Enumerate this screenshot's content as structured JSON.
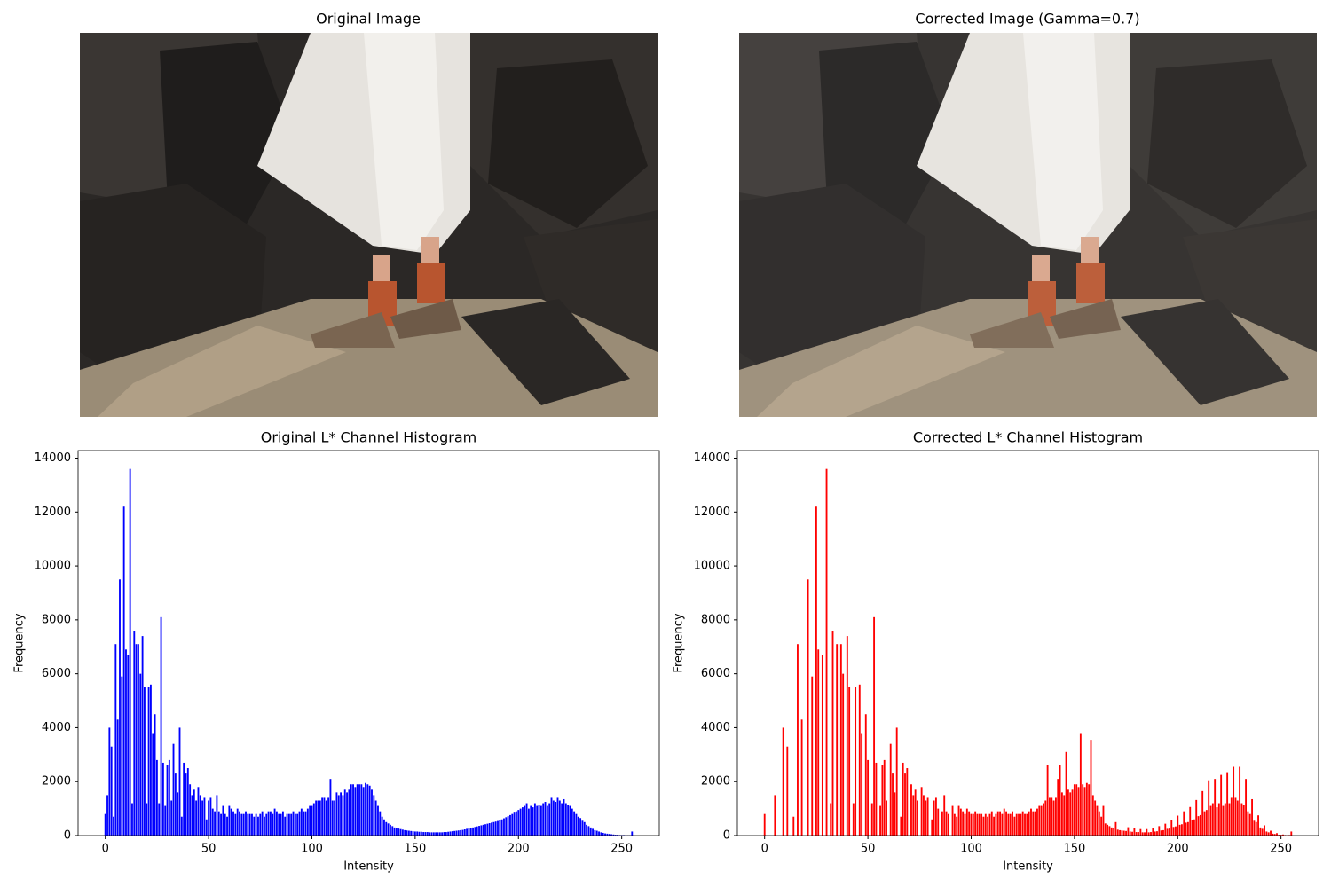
{
  "images": [
    {
      "title": "Original Image"
    },
    {
      "title": "Corrected Image (Gamma=0.7)"
    }
  ],
  "chart_data": [
    {
      "type": "bar",
      "title": "Original L* Channel Histogram",
      "xlabel": "Intensity",
      "ylabel": "Frequency",
      "color": "#0000ff",
      "xlim": [
        -13.19,
        268.19
      ],
      "ylim": [
        0,
        14280
      ],
      "xticks": [
        0,
        50,
        100,
        150,
        200,
        250
      ],
      "yticks": [
        0,
        2000,
        4000,
        6000,
        8000,
        10000,
        12000,
        14000
      ],
      "x": [
        0,
        1,
        2,
        3,
        4,
        5,
        6,
        7,
        8,
        9,
        10,
        11,
        12,
        13,
        14,
        15,
        16,
        17,
        18,
        19,
        20,
        21,
        22,
        23,
        24,
        25,
        26,
        27,
        28,
        29,
        30,
        31,
        32,
        33,
        34,
        35,
        36,
        37,
        38,
        39,
        40,
        41,
        42,
        43,
        44,
        45,
        46,
        47,
        48,
        49,
        50,
        51,
        52,
        53,
        54,
        55,
        56,
        57,
        58,
        59,
        60,
        61,
        62,
        63,
        64,
        65,
        66,
        67,
        68,
        69,
        70,
        71,
        72,
        73,
        74,
        75,
        76,
        77,
        78,
        79,
        80,
        81,
        82,
        83,
        84,
        85,
        86,
        87,
        88,
        89,
        90,
        91,
        92,
        93,
        94,
        95,
        96,
        97,
        98,
        99,
        100,
        101,
        102,
        103,
        104,
        105,
        106,
        107,
        108,
        109,
        110,
        111,
        112,
        113,
        114,
        115,
        116,
        117,
        118,
        119,
        120,
        121,
        122,
        123,
        124,
        125,
        126,
        127,
        128,
        129,
        130,
        131,
        132,
        133,
        134,
        135,
        136,
        137,
        138,
        139,
        140,
        141,
        142,
        143,
        144,
        145,
        146,
        147,
        148,
        149,
        150,
        151,
        152,
        153,
        154,
        155,
        156,
        157,
        158,
        159,
        160,
        161,
        162,
        163,
        164,
        165,
        166,
        167,
        168,
        169,
        170,
        171,
        172,
        173,
        174,
        175,
        176,
        177,
        178,
        179,
        180,
        181,
        182,
        183,
        184,
        185,
        186,
        187,
        188,
        189,
        190,
        191,
        192,
        193,
        194,
        195,
        196,
        197,
        198,
        199,
        200,
        201,
        202,
        203,
        204,
        205,
        206,
        207,
        208,
        209,
        210,
        211,
        212,
        213,
        214,
        215,
        216,
        217,
        218,
        219,
        220,
        221,
        222,
        223,
        224,
        225,
        226,
        227,
        228,
        229,
        230,
        231,
        232,
        233,
        234,
        235,
        236,
        237,
        238,
        239,
        240,
        241,
        242,
        243,
        244,
        245,
        246,
        247,
        248,
        249,
        250,
        251,
        252,
        253,
        254,
        255
      ],
      "values": [
        800,
        1500,
        4000,
        3300,
        700,
        7100,
        4300,
        9500,
        5900,
        12200,
        6900,
        6700,
        13600,
        1200,
        7600,
        7100,
        7100,
        6000,
        7400,
        5500,
        1200,
        5500,
        5600,
        3800,
        4500,
        2800,
        1200,
        8100,
        2700,
        1100,
        2600,
        2800,
        1300,
        3400,
        2300,
        1600,
        4000,
        700,
        2700,
        2300,
        2500,
        1900,
        1500,
        1700,
        1300,
        1800,
        1500,
        1300,
        1400,
        600,
        1300,
        1400,
        1000,
        900,
        1500,
        900,
        800,
        1100,
        800,
        700,
        1100,
        1000,
        900,
        800,
        1000,
        900,
        800,
        800,
        900,
        800,
        800,
        800,
        700,
        800,
        700,
        800,
        900,
        700,
        800,
        900,
        900,
        800,
        1000,
        900,
        800,
        800,
        900,
        700,
        800,
        800,
        800,
        900,
        800,
        800,
        900,
        1000,
        900,
        900,
        1000,
        1100,
        1100,
        1200,
        1300,
        1300,
        1300,
        1400,
        1400,
        1300,
        1400,
        2100,
        1300,
        1300,
        1600,
        1500,
        1600,
        1500,
        1700,
        1600,
        1700,
        1900,
        1900,
        1800,
        1900,
        1900,
        1900,
        1800,
        1950,
        1900,
        1850,
        1700,
        1500,
        1300,
        1100,
        900,
        700,
        600,
        500,
        450,
        400,
        350,
        300,
        280,
        260,
        240,
        220,
        200,
        190,
        180,
        170,
        160,
        150,
        150,
        140,
        140,
        130,
        130,
        130,
        120,
        120,
        120,
        120,
        120,
        120,
        120,
        130,
        130,
        140,
        150,
        160,
        170,
        180,
        190,
        200,
        210,
        230,
        250,
        260,
        280,
        300,
        320,
        340,
        360,
        380,
        400,
        420,
        440,
        460,
        480,
        500,
        520,
        540,
        560,
        600,
        640,
        680,
        720,
        760,
        800,
        850,
        900,
        950,
        1000,
        1050,
        1100,
        1200,
        1000,
        1100,
        1050,
        1200,
        1100,
        1150,
        1100,
        1200,
        1250,
        1100,
        1200,
        1400,
        1300,
        1250,
        1400,
        1300,
        1200,
        1350,
        1200,
        1150,
        1100,
        1000,
        900,
        800,
        700,
        650,
        550,
        500,
        400,
        350,
        300,
        250,
        200,
        180,
        150,
        120,
        100,
        80,
        70,
        60,
        50,
        40,
        30,
        30,
        20,
        20,
        20,
        10,
        10,
        10,
        150
      ]
    },
    {
      "type": "bar",
      "title": "Corrected L* Channel Histogram",
      "xlabel": "Intensity",
      "ylabel": "Frequency",
      "color": "#ff0000",
      "xlim": [
        -13.19,
        268.19
      ],
      "ylim": [
        0,
        14280
      ],
      "xticks": [
        0,
        50,
        100,
        150,
        200,
        250
      ],
      "yticks": [
        0,
        2000,
        4000,
        6000,
        8000,
        10000,
        12000,
        14000
      ],
      "x": [
        0,
        1,
        2,
        3,
        4,
        5,
        6,
        7,
        8,
        9,
        10,
        11,
        12,
        13,
        14,
        15,
        16,
        17,
        18,
        19,
        20,
        21,
        22,
        23,
        24,
        25,
        26,
        27,
        28,
        29,
        30,
        31,
        32,
        33,
        34,
        35,
        36,
        37,
        38,
        39,
        40,
        41,
        42,
        43,
        44,
        45,
        46,
        47,
        48,
        49,
        50,
        51,
        52,
        53,
        54,
        55,
        56,
        57,
        58,
        59,
        60,
        61,
        62,
        63,
        64,
        65,
        66,
        67,
        68,
        69,
        70,
        71,
        72,
        73,
        74,
        75,
        76,
        77,
        78,
        79,
        80,
        81,
        82,
        83,
        84,
        85,
        86,
        87,
        88,
        89,
        90,
        91,
        92,
        93,
        94,
        95,
        96,
        97,
        98,
        99,
        100,
        101,
        102,
        103,
        104,
        105,
        106,
        107,
        108,
        109,
        110,
        111,
        112,
        113,
        114,
        115,
        116,
        117,
        118,
        119,
        120,
        121,
        122,
        123,
        124,
        125,
        126,
        127,
        128,
        129,
        130,
        131,
        132,
        133,
        134,
        135,
        136,
        137,
        138,
        139,
        140,
        141,
        142,
        143,
        144,
        145,
        146,
        147,
        148,
        149,
        150,
        151,
        152,
        153,
        154,
        155,
        156,
        157,
        158,
        159,
        160,
        161,
        162,
        163,
        164,
        165,
        166,
        167,
        168,
        169,
        170,
        171,
        172,
        173,
        174,
        175,
        176,
        177,
        178,
        179,
        180,
        181,
        182,
        183,
        184,
        185,
        186,
        187,
        188,
        189,
        190,
        191,
        192,
        193,
        194,
        195,
        196,
        197,
        198,
        199,
        200,
        201,
        202,
        203,
        204,
        205,
        206,
        207,
        208,
        209,
        210,
        211,
        212,
        213,
        214,
        215,
        216,
        217,
        218,
        219,
        220,
        221,
        222,
        223,
        224,
        225,
        226,
        227,
        228,
        229,
        230,
        231,
        232,
        233,
        234,
        235,
        236,
        237,
        238,
        239,
        240,
        241,
        242,
        243,
        244,
        245,
        246,
        247,
        248,
        249,
        250,
        251,
        252,
        253,
        254,
        255
      ],
      "values": [
        800,
        0,
        0,
        0,
        0,
        1500,
        0,
        0,
        0,
        4000,
        0,
        3300,
        0,
        0,
        700,
        0,
        7100,
        0,
        4300,
        0,
        0,
        9500,
        0,
        5900,
        0,
        12200,
        6900,
        0,
        6700,
        0,
        13600,
        0,
        1200,
        7600,
        0,
        7100,
        0,
        7100,
        6000,
        0,
        7400,
        5500,
        0,
        1200,
        5500,
        0,
        5600,
        3800,
        0,
        4500,
        2800,
        0,
        1200,
        8100,
        2700,
        0,
        1100,
        2600,
        2800,
        1300,
        0,
        3400,
        2300,
        1600,
        4000,
        0,
        700,
        2700,
        2300,
        2500,
        0,
        1900,
        1500,
        1700,
        1300,
        0,
        1800,
        1500,
        1300,
        1400,
        0,
        600,
        1300,
        1400,
        1000,
        0,
        900,
        1500,
        900,
        800,
        0,
        1100,
        800,
        700,
        1100,
        1000,
        900,
        800,
        1000,
        900,
        800,
        800,
        900,
        800,
        800,
        800,
        700,
        800,
        700,
        800,
        900,
        700,
        800,
        900,
        900,
        800,
        1000,
        900,
        800,
        800,
        900,
        700,
        800,
        800,
        800,
        900,
        800,
        800,
        900,
        1000,
        900,
        900,
        1000,
        1100,
        1100,
        1200,
        1300,
        2600,
        1400,
        1400,
        1300,
        1400,
        2100,
        2600,
        1600,
        1500,
        3100,
        1700,
        1600,
        1700,
        1900,
        1900,
        1800,
        3800,
        1900,
        1800,
        1950,
        1900,
        3550,
        1500,
        1300,
        1100,
        900,
        700,
        1100,
        450,
        400,
        350,
        300,
        280,
        500,
        220,
        200,
        190,
        180,
        170,
        310,
        150,
        140,
        270,
        130,
        130,
        240,
        120,
        120,
        240,
        120,
        130,
        270,
        150,
        160,
        350,
        190,
        200,
        440,
        250,
        260,
        580,
        320,
        340,
        740,
        400,
        420,
        900,
        480,
        500,
        1060,
        560,
        600,
        1320,
        720,
        760,
        1650,
        900,
        950,
        2050,
        1100,
        1200,
        2100,
        1050,
        1200,
        2250,
        1100,
        1200,
        2350,
        1200,
        1400,
        2550,
        1400,
        1300,
        2550,
        1200,
        1150,
        2100,
        900,
        800,
        1350,
        550,
        500,
        750,
        300,
        250,
        380,
        150,
        120,
        180,
        70,
        60,
        90,
        30,
        30,
        40,
        20,
        10,
        20,
        150
      ]
    }
  ]
}
